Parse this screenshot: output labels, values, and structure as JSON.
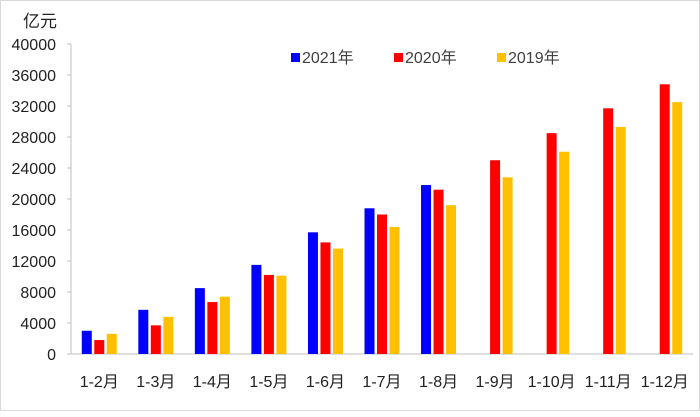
{
  "chart_data": {
    "type": "bar",
    "title": "",
    "unit_label": "亿元",
    "xlabel": "",
    "ylabel": "亿元",
    "ylim": [
      0,
      40000
    ],
    "yticks": [
      0,
      4000,
      8000,
      12000,
      16000,
      20000,
      24000,
      28000,
      32000,
      36000,
      40000
    ],
    "grid": false,
    "legend_position": "top",
    "categories": [
      "1-2月",
      "1-3月",
      "1-4月",
      "1-5月",
      "1-6月",
      "1-7月",
      "1-8月",
      "1-9月",
      "1-10月",
      "1-11月",
      "1-12月"
    ],
    "series": [
      {
        "name": "2021年",
        "color": "#0000FF",
        "values": [
          3000,
          5700,
          8500,
          11500,
          15700,
          18800,
          21800,
          null,
          null,
          null,
          null
        ]
      },
      {
        "name": "2020年",
        "color": "#FF0000",
        "values": [
          1800,
          3700,
          6700,
          10200,
          14400,
          18000,
          21200,
          25000,
          28500,
          31700,
          34800
        ]
      },
      {
        "name": "2019年",
        "color": "#FFC000",
        "values": [
          2600,
          4800,
          7400,
          10100,
          13600,
          16400,
          19200,
          22800,
          26100,
          29300,
          32500
        ]
      }
    ]
  }
}
